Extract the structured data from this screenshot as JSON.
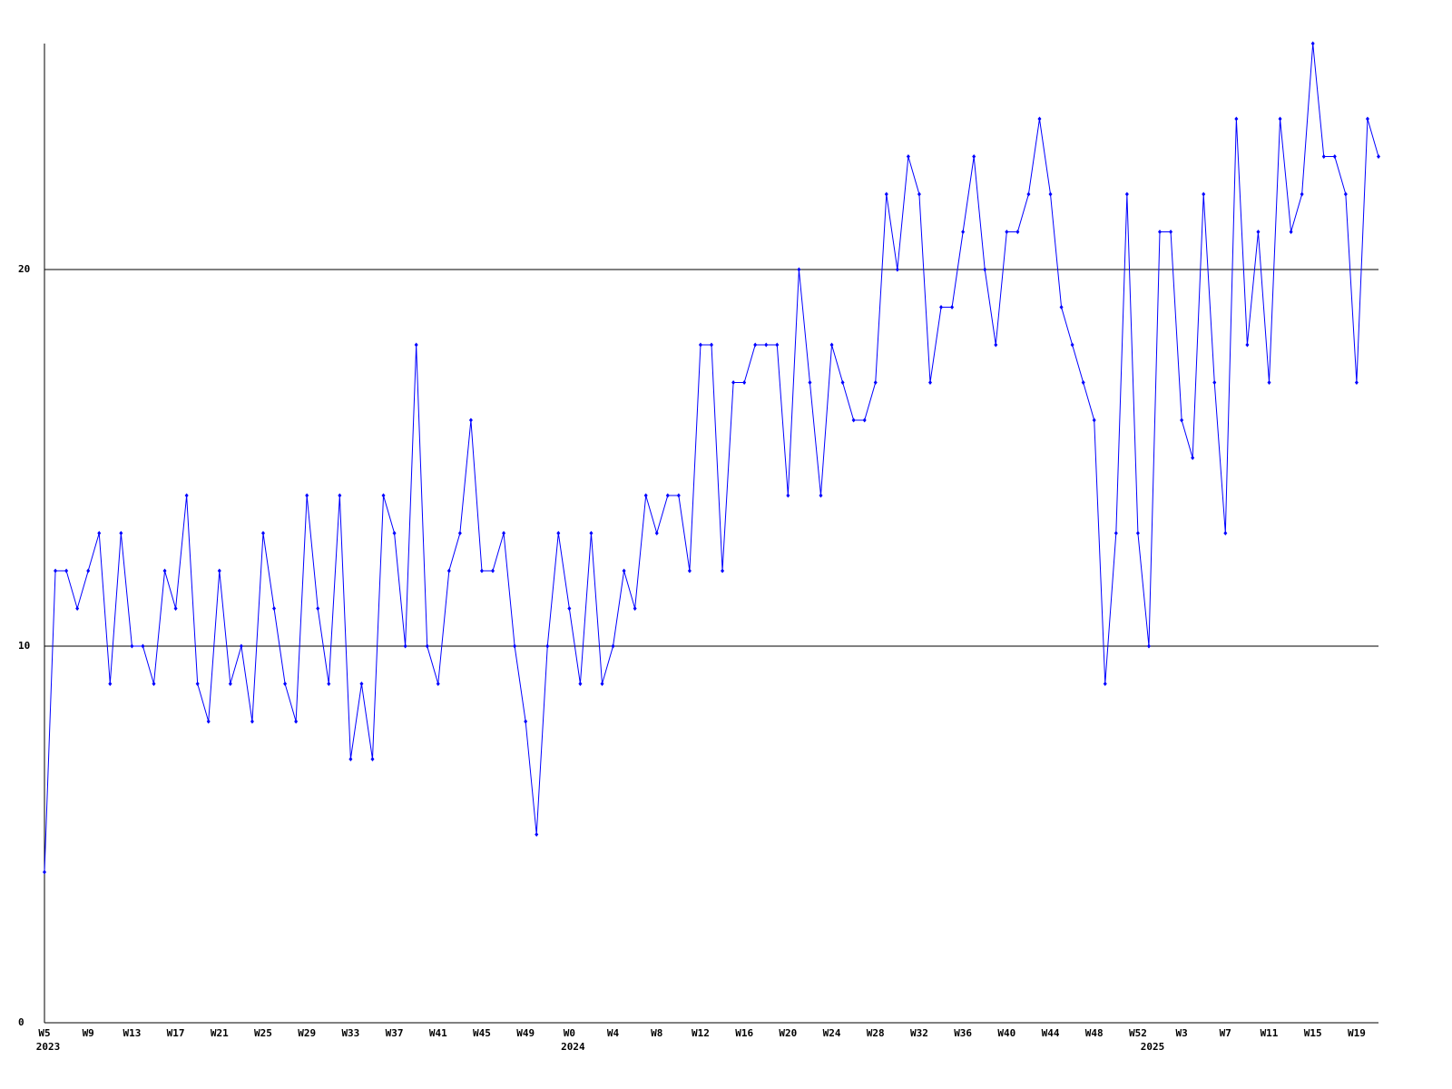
{
  "chart_data": {
    "type": "line",
    "categories": [
      "W5",
      null,
      null,
      null,
      "W9",
      null,
      null,
      null,
      "W13",
      null,
      null,
      null,
      "W17",
      null,
      null,
      null,
      "W21",
      null,
      null,
      null,
      "W25",
      null,
      null,
      null,
      "W29",
      null,
      null,
      null,
      "W33",
      null,
      null,
      null,
      "W37",
      null,
      null,
      null,
      "W41",
      null,
      null,
      null,
      "W45",
      null,
      null,
      null,
      "W49",
      null,
      null,
      null,
      "W0",
      null,
      null,
      null,
      "W4",
      null,
      null,
      null,
      "W8",
      null,
      null,
      null,
      "W12",
      null,
      null,
      null,
      "W16",
      null,
      null,
      null,
      "W20",
      null,
      null,
      null,
      "W24",
      null,
      null,
      null,
      "W28",
      null,
      null,
      null,
      "W32",
      null,
      null,
      null,
      "W36",
      null,
      null,
      null,
      "W40",
      null,
      null,
      null,
      "W44",
      null,
      null,
      null,
      "W48",
      null,
      null,
      null,
      "W52",
      null,
      null,
      null,
      "W3",
      null,
      null,
      null,
      "W7",
      null,
      null,
      null,
      "W11",
      null,
      null,
      null,
      "W15",
      null,
      null,
      null,
      "W19",
      null,
      null
    ],
    "category_years": [
      "2023",
      null,
      null,
      null,
      null,
      null,
      null,
      null,
      null,
      null,
      null,
      null,
      null,
      null,
      null,
      null,
      null,
      null,
      null,
      null,
      null,
      null,
      null,
      null,
      null,
      null,
      null,
      null,
      null,
      null,
      null,
      null,
      null,
      null,
      null,
      null,
      null,
      null,
      null,
      null,
      null,
      null,
      null,
      null,
      null,
      null,
      null,
      null,
      "2024",
      null,
      null,
      null,
      null,
      null,
      null,
      null,
      null,
      null,
      null,
      null,
      null,
      null,
      null,
      null,
      null,
      null,
      null,
      null,
      null,
      null,
      null,
      null,
      null,
      null,
      null,
      null,
      null,
      null,
      null,
      null,
      null,
      null,
      null,
      null,
      null,
      null,
      null,
      null,
      null,
      null,
      null,
      null,
      null,
      null,
      null,
      null,
      null,
      null,
      null,
      null,
      null,
      "2025",
      null,
      null,
      null,
      null,
      null,
      null,
      null,
      null,
      null,
      null,
      null,
      null,
      null,
      null,
      null,
      null,
      null,
      null,
      null,
      null,
      null
    ],
    "series": [
      {
        "color": "#0000ff",
        "values": [
          4,
          12,
          12,
          11,
          12,
          13,
          9,
          13,
          10,
          10,
          9,
          12,
          11,
          14,
          9,
          8,
          12,
          9,
          10,
          8,
          13,
          11,
          9,
          8,
          14,
          11,
          9,
          14,
          7,
          9,
          7,
          14,
          13,
          10,
          18,
          10,
          9,
          12,
          13,
          16,
          12,
          12,
          13,
          10,
          8,
          5,
          10,
          13,
          11,
          9,
          13,
          9,
          10,
          12,
          11,
          14,
          13,
          14,
          14,
          12,
          18,
          18,
          12,
          17,
          17,
          18,
          18,
          18,
          14,
          20,
          17,
          14,
          18,
          17,
          16,
          16,
          17,
          22,
          20,
          23,
          22,
          17,
          19,
          19,
          21,
          23,
          20,
          18,
          21,
          21,
          22,
          24,
          22,
          19,
          18,
          17,
          16,
          9,
          13,
          22,
          13,
          10,
          21,
          21,
          16,
          15,
          22,
          17,
          13,
          24,
          18,
          21,
          17,
          24,
          21,
          22,
          26,
          23,
          23,
          22,
          17,
          24,
          23
        ]
      }
    ],
    "ylim": [
      0,
      26
    ],
    "yticks": [
      0,
      10,
      20
    ],
    "grid": true
  }
}
